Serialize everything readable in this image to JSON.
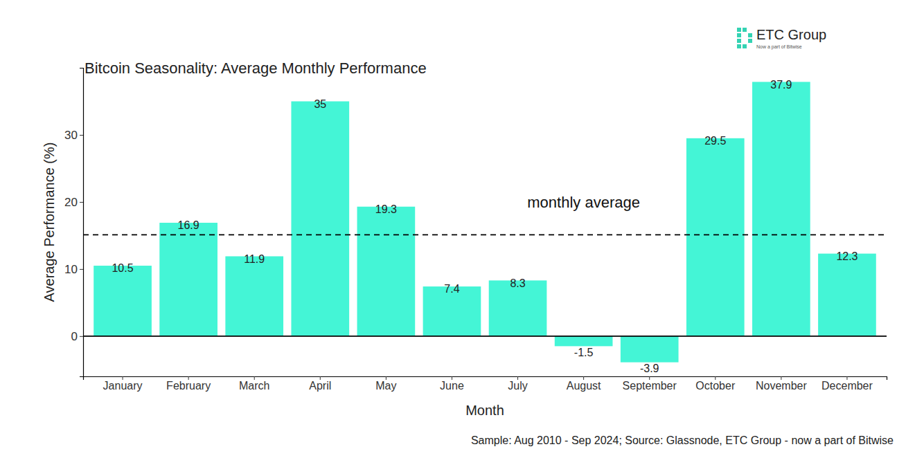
{
  "chart_data": {
    "type": "bar",
    "title": "Bitcoin Seasonality: Average Monthly Performance",
    "x_label": "Month",
    "y_label": "Average Performance (%)",
    "categories": [
      "January",
      "February",
      "March",
      "April",
      "May",
      "June",
      "July",
      "August",
      "September",
      "October",
      "November",
      "December"
    ],
    "values": [
      10.5,
      16.9,
      11.9,
      35,
      19.3,
      7.4,
      8.3,
      -1.5,
      -3.9,
      29.5,
      37.9,
      12.3
    ],
    "color": "#44f5d6",
    "ylim": [
      -6,
      40
    ],
    "yticks": [
      0,
      10,
      20,
      30
    ],
    "grid": false,
    "data_labels": true,
    "reference_lines": [
      {
        "value": 15.1,
        "label": "monthly average",
        "line_style": "dashed"
      },
      {
        "value": 0,
        "line_style": "solid"
      }
    ],
    "caption": "Sample: Aug 2010 - Sep 2024; Source: Glassnode, ETC Group - now a part of Bitwise",
    "logo": {
      "text": "ETC Group",
      "subtitle": "Now a part of Bitwise"
    }
  }
}
